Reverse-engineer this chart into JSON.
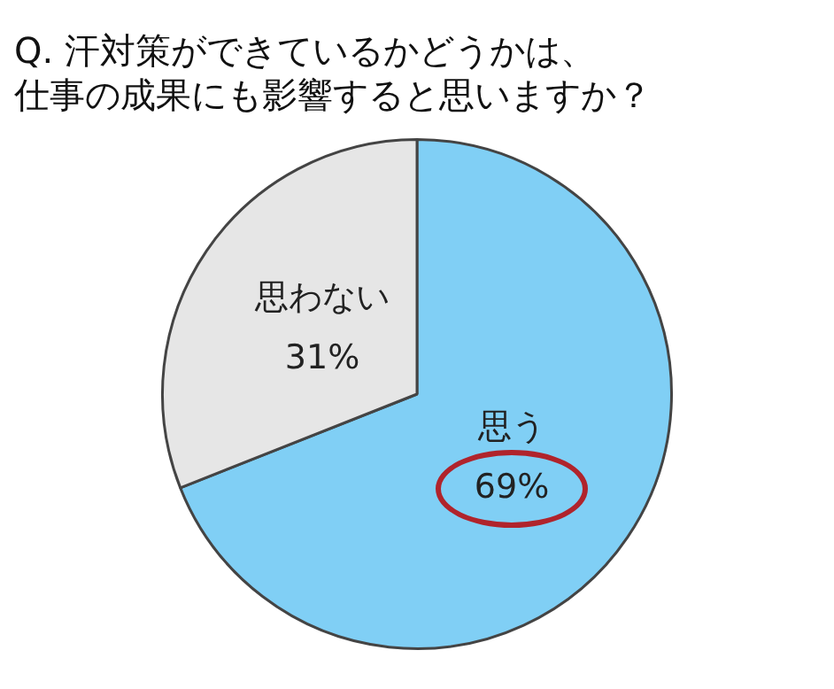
{
  "chart_data": {
    "type": "pie",
    "title": "Q. 汗対策ができているかどうかは、仕事の成果にも影響すると思いますか？",
    "categories": [
      "思う",
      "思わない"
    ],
    "values": [
      69,
      31
    ],
    "colors": [
      "#80cff5",
      "#e6e6e6"
    ],
    "value_labels": [
      "69%",
      "31%"
    ],
    "legend": false
  }
}
